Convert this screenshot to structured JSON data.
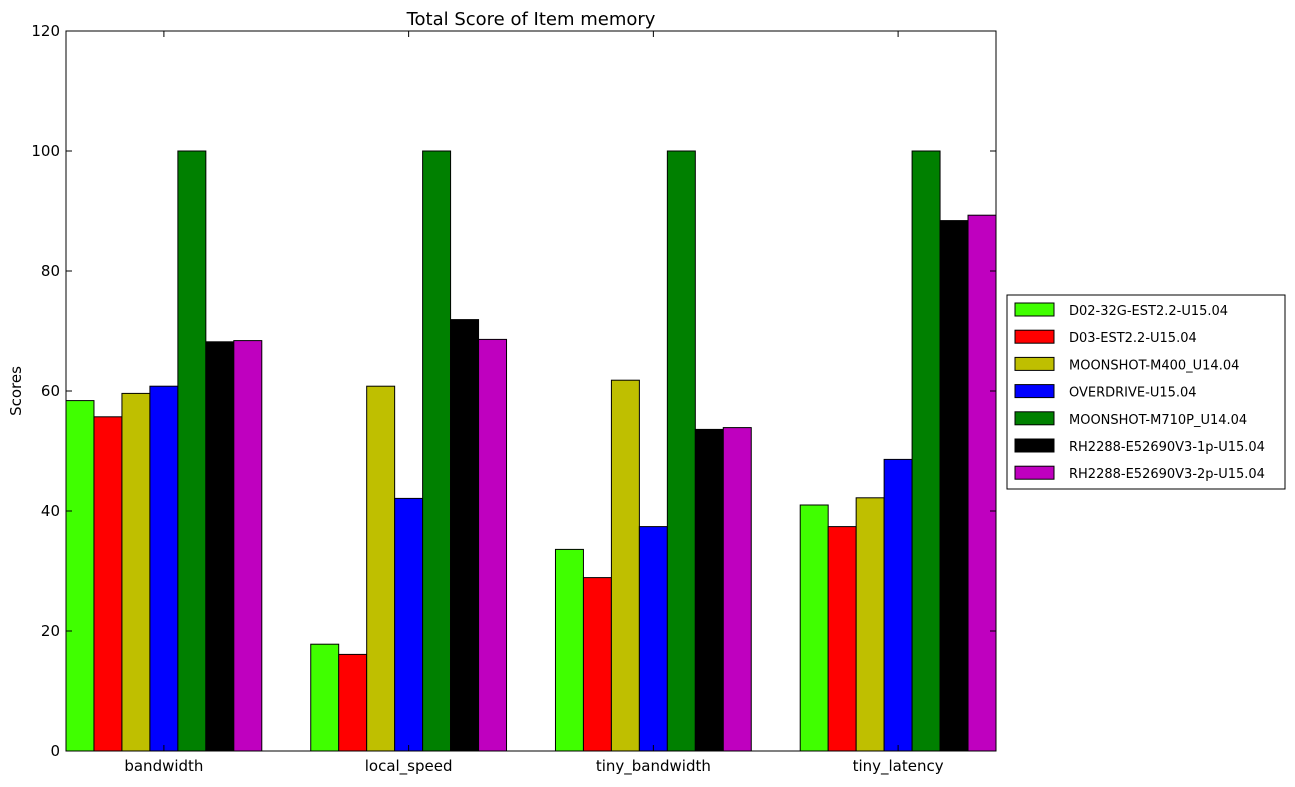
{
  "chart_data": {
    "type": "bar",
    "title": "Total Score of Item memory",
    "xlabel": "",
    "ylabel": "Scores",
    "ylim": [
      0,
      120
    ],
    "yticks": [
      "0",
      "20",
      "40",
      "60",
      "80",
      "100",
      "120"
    ],
    "grid": false,
    "legend_position": "right",
    "categories": [
      "bandwidth",
      "local_speed",
      "tiny_bandwidth",
      "tiny_latency"
    ],
    "series": [
      {
        "name": "D02-32G-EST2.2-U15.04",
        "color": "#40ff00",
        "values": [
          58.4,
          17.8,
          33.6,
          41.0
        ]
      },
      {
        "name": "D03-EST2.2-U15.04",
        "color": "#ff0000",
        "values": [
          55.7,
          16.1,
          28.9,
          37.4
        ]
      },
      {
        "name": "MOONSHOT-M400_U14.04",
        "color": "#bfbf00",
        "values": [
          59.6,
          60.8,
          61.8,
          42.2
        ]
      },
      {
        "name": "OVERDRIVE-U15.04",
        "color": "#0000ff",
        "values": [
          60.8,
          42.1,
          37.4,
          48.6
        ]
      },
      {
        "name": "MOONSHOT-M710P_U14.04",
        "color": "#008000",
        "values": [
          100.0,
          100.0,
          100.0,
          100.0
        ]
      },
      {
        "name": "RH2288-E52690V3-1p-U15.04",
        "color": "#000000",
        "values": [
          68.2,
          71.9,
          53.6,
          88.4
        ]
      },
      {
        "name": "RH2288-E52690V3-2p-U15.04",
        "color": "#bf00bf",
        "values": [
          68.4,
          68.6,
          53.9,
          89.3
        ]
      }
    ]
  }
}
